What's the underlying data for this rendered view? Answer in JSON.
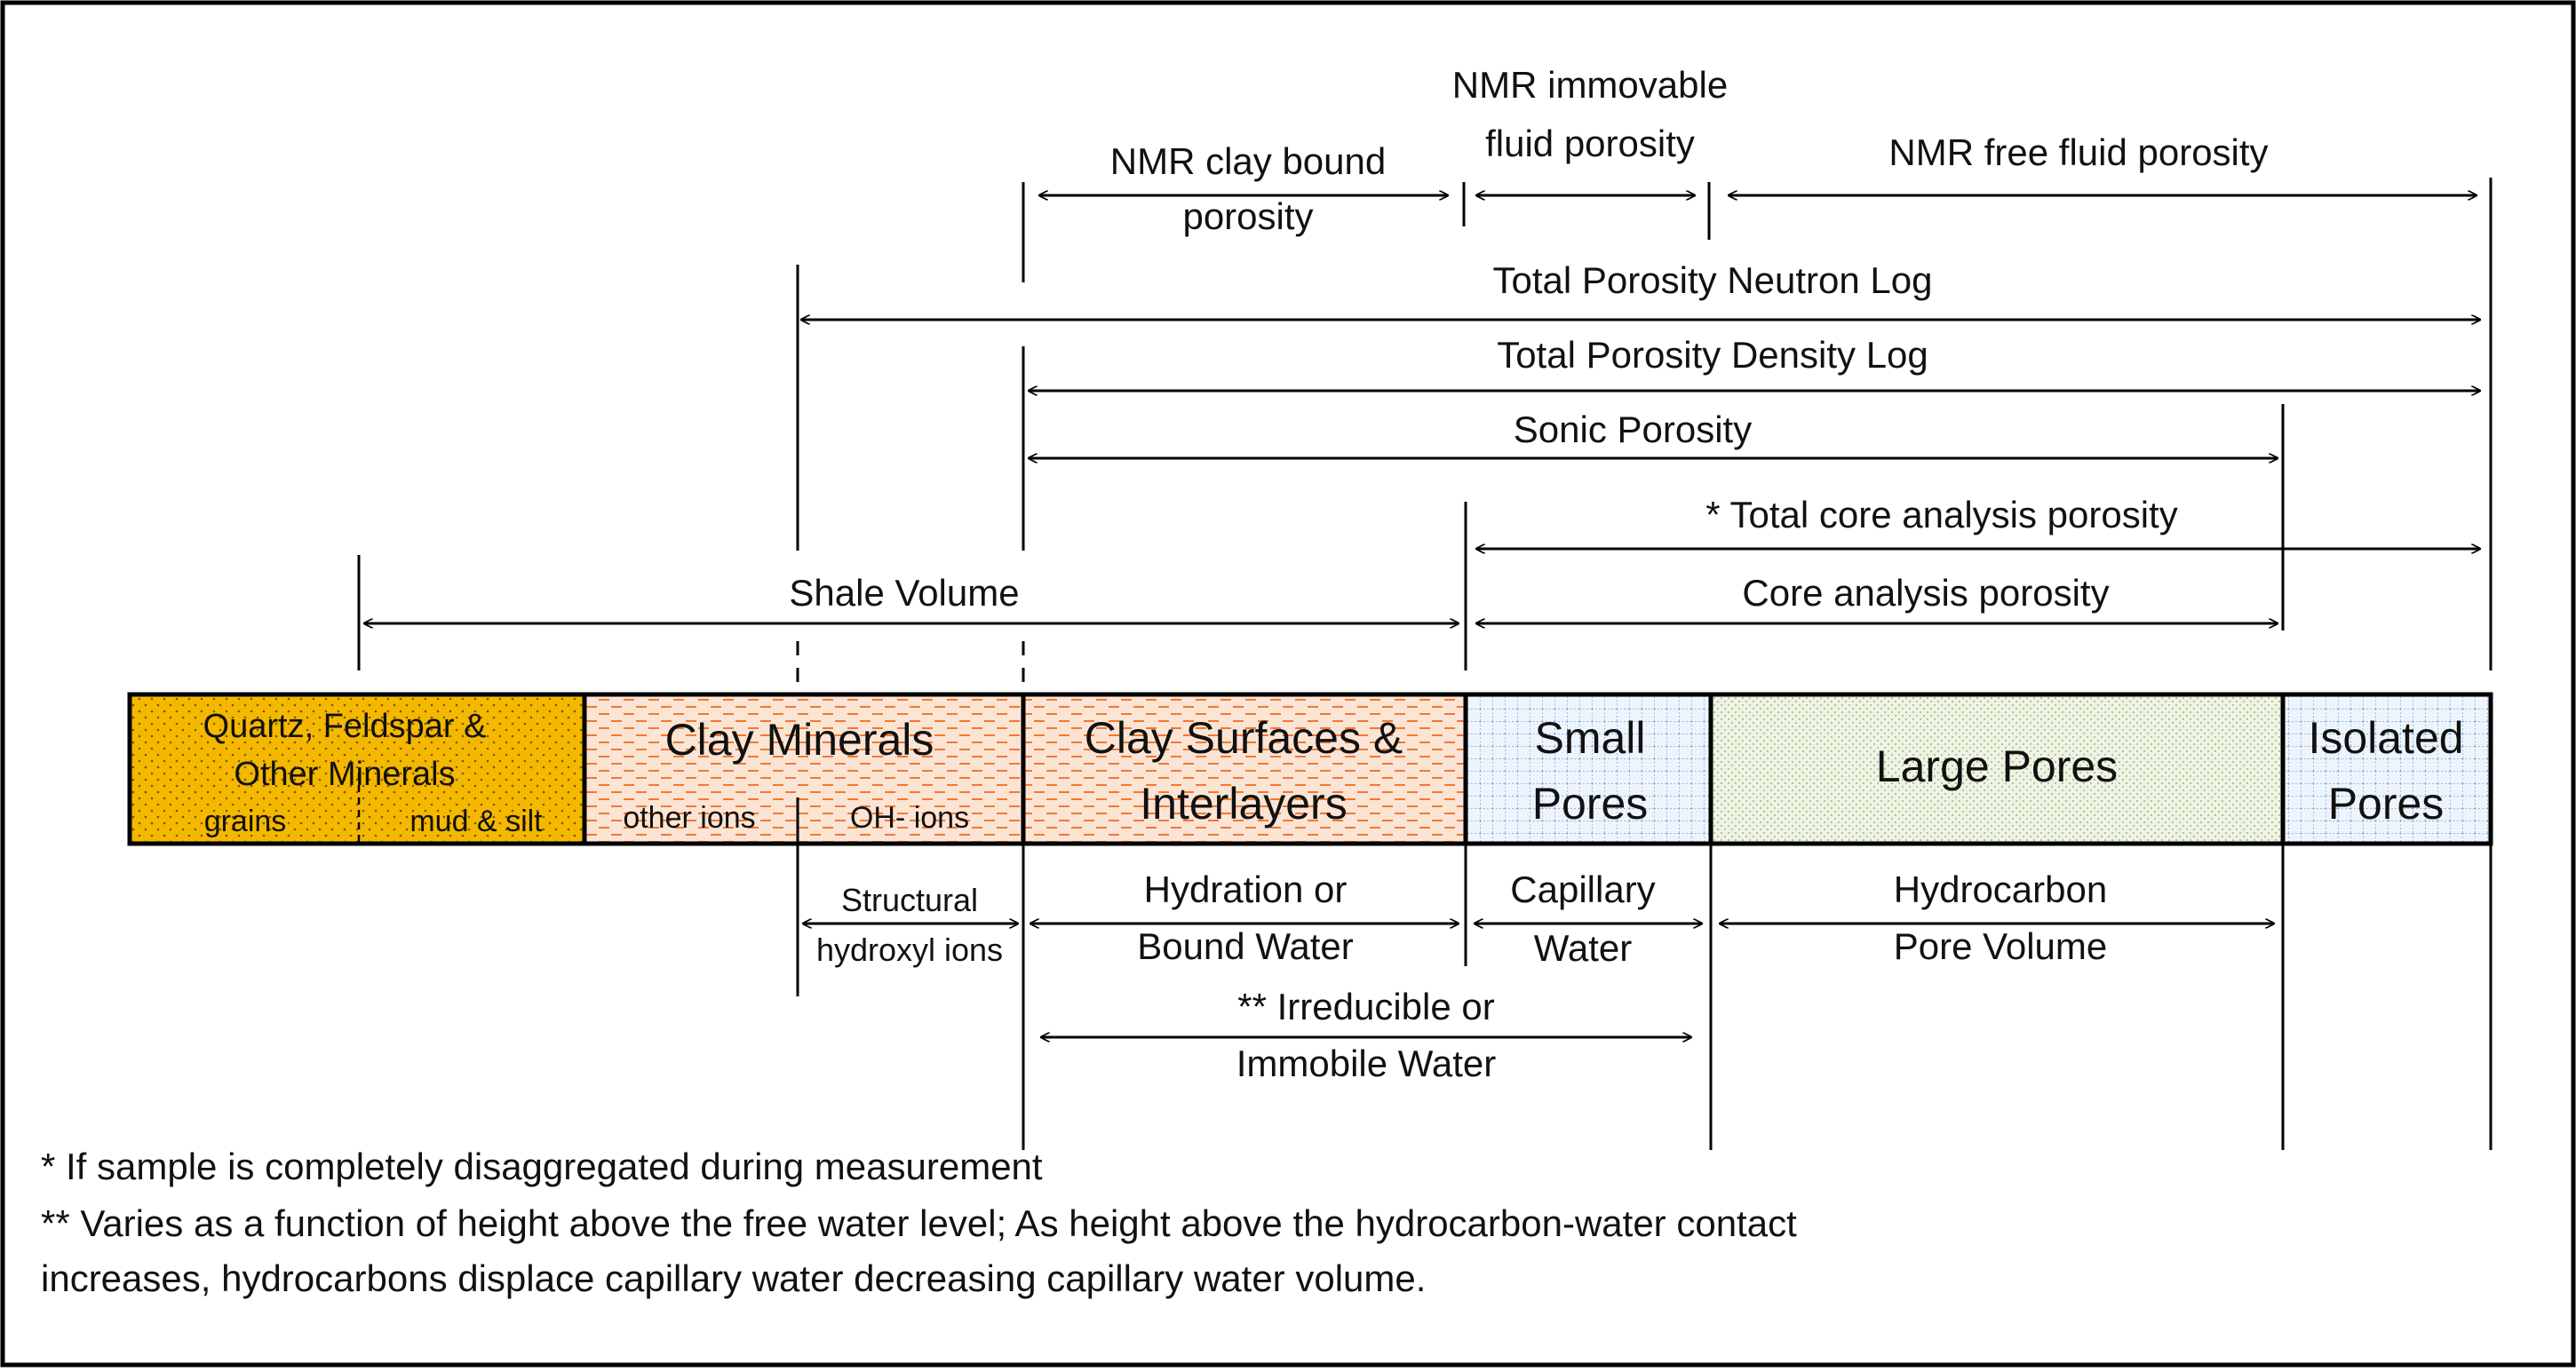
{
  "measures": {
    "nmr_clay_bound_1": "NMR clay bound",
    "nmr_clay_bound_2": "porosity",
    "nmr_immovable_1": "NMR immovable",
    "nmr_immovable_2": "fluid porosity",
    "nmr_free_fluid": "NMR free fluid porosity",
    "total_neutron": "Total Porosity Neutron Log",
    "total_density": "Total Porosity Density Log",
    "sonic": "Sonic Porosity",
    "total_core": "* Total core analysis porosity",
    "shale_volume": "Shale Volume",
    "core_analysis": "Core analysis porosity"
  },
  "components": {
    "quartz_1": "Quartz, Feldspar &",
    "quartz_2": "Other Minerals",
    "grains": "grains",
    "mud_silt": "mud & silt",
    "clay_minerals": "Clay Minerals",
    "other_ions": "other ions",
    "oh_ions": "OH- ions",
    "clay_surfaces_1": "Clay Surfaces &",
    "clay_surfaces_2": "Interlayers",
    "small_pores_1": "Small",
    "small_pores_2": "Pores",
    "large_pores": "Large Pores",
    "isolated_1": "Isolated",
    "isolated_2": "Pores"
  },
  "waters": {
    "structural_1": "Structural",
    "structural_2": "hydroxyl ions",
    "hydration_1": "Hydration or",
    "hydration_2": "Bound Water",
    "capillary_1": "Capillary",
    "capillary_2": "Water",
    "hydrocarbon_1": "Hydrocarbon",
    "hydrocarbon_2": "Pore Volume",
    "irreducible_1": "** Irreducible or",
    "irreducible_2": "Immobile Water"
  },
  "notes": {
    "note1": "* If sample is completely disaggregated during measurement",
    "note2": "** Varies as a function of height above the free water level; As height above the hydrocarbon-water contact",
    "note3": "increases, hydrocarbons displace capillary water decreasing capillary water volume."
  },
  "colors": {
    "quartz": "#F5B800",
    "clay": "#FCE4D4",
    "clay_dash": "#F07A30",
    "small": "#EEF4FC",
    "small_grid": "#7EA6D8",
    "large": "#EEF3E4",
    "large_dot": "#9DB87C",
    "isolated": "#EEF4FC",
    "outline": "#000000"
  }
}
